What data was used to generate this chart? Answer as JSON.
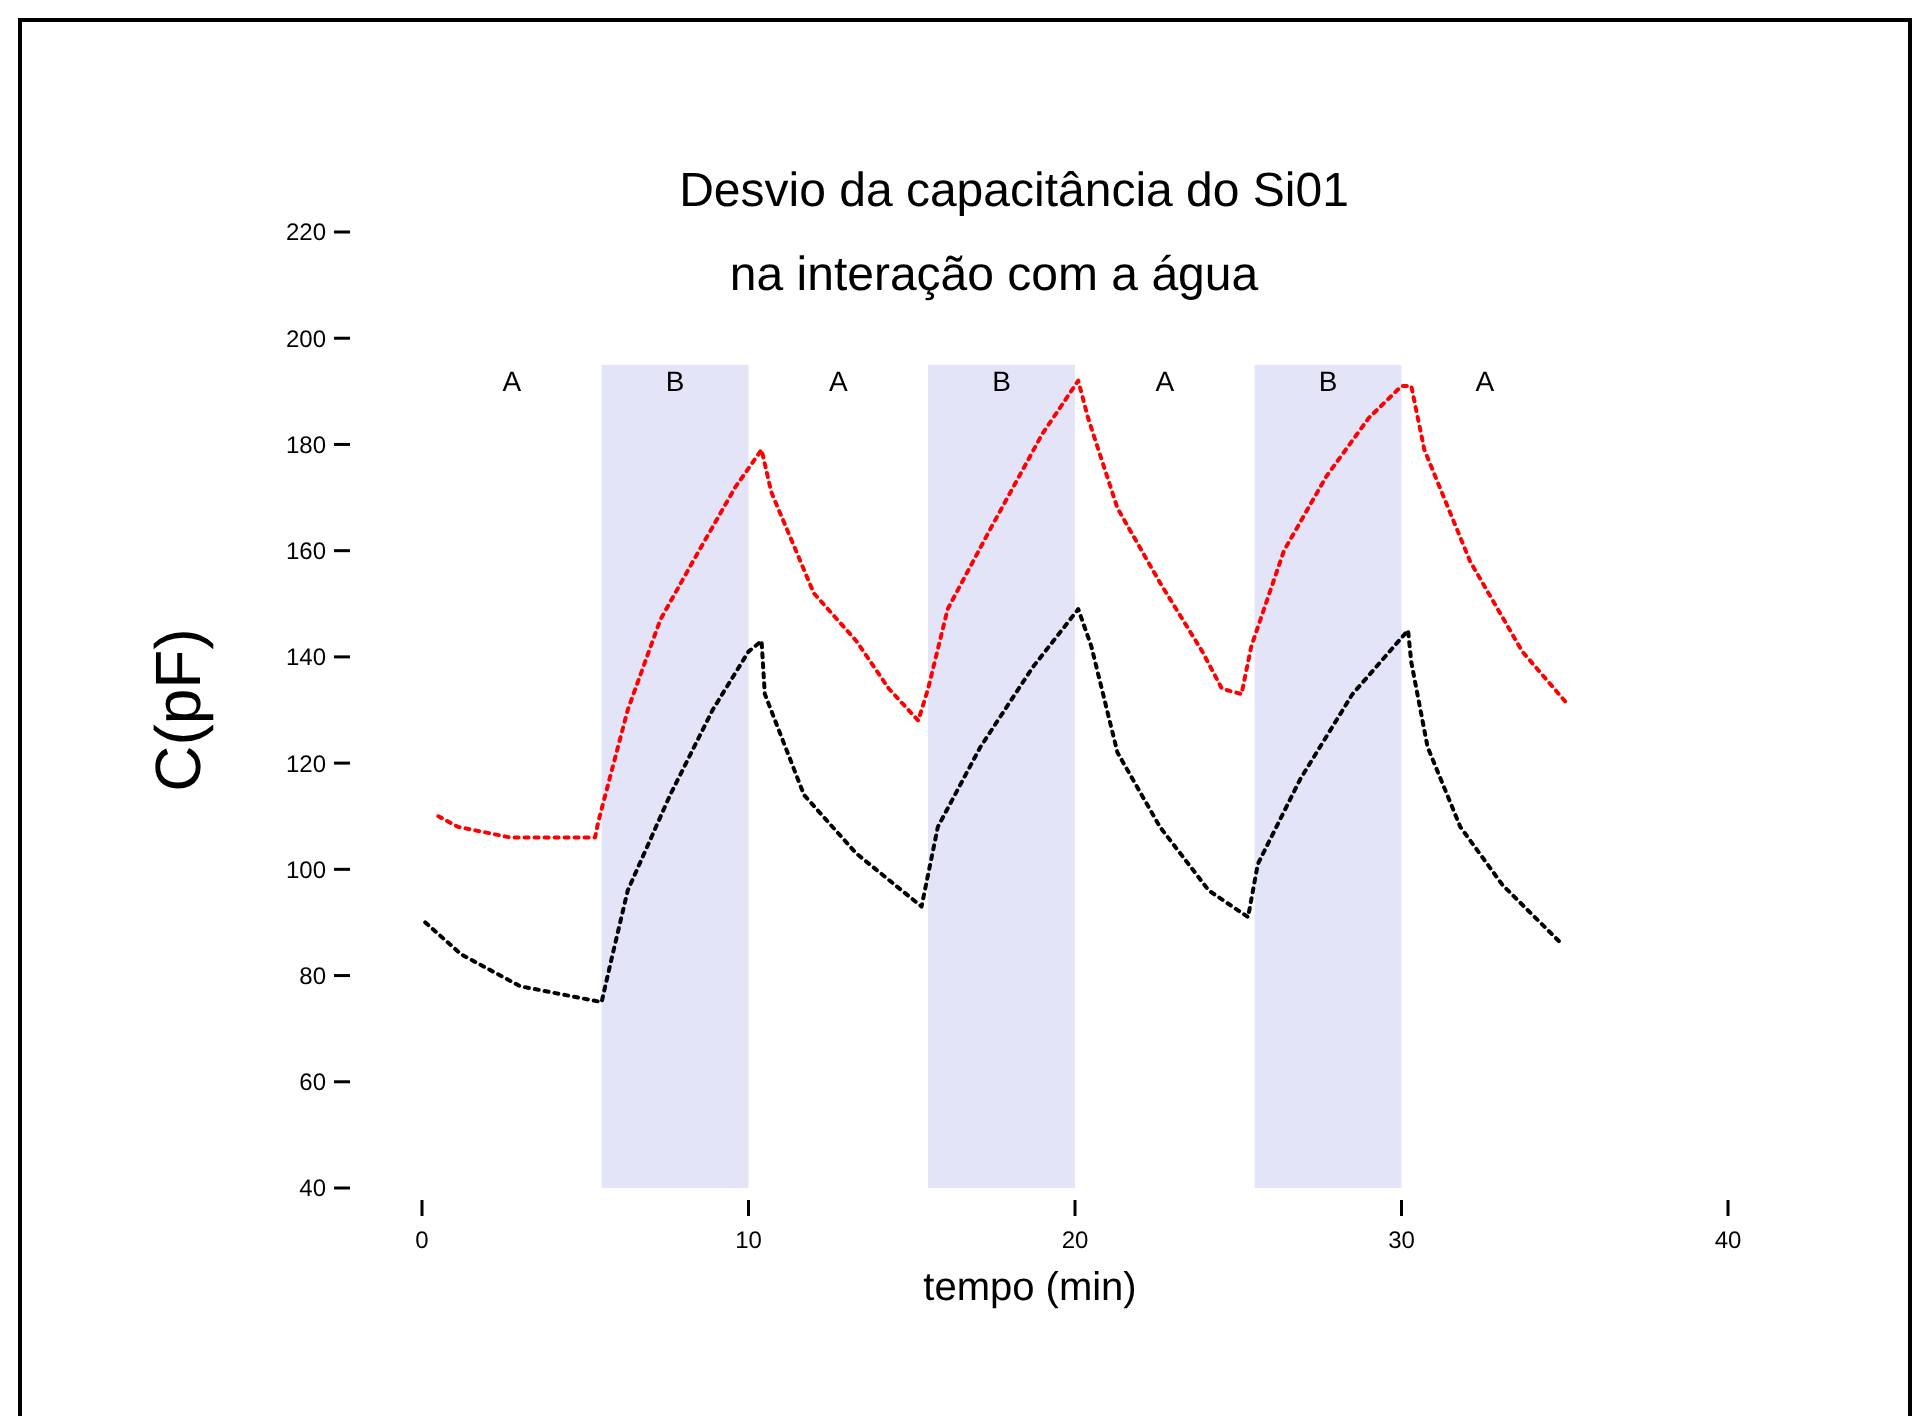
{
  "chart_data": {
    "type": "line",
    "title": "Desvio da capacitância do Si01",
    "subtitle": "na interação com a água",
    "xlabel": "tempo (min)",
    "ylabel": "C(pF)",
    "xlim": [
      0,
      40
    ],
    "xticks": [
      0,
      10,
      20,
      30,
      40
    ],
    "ylim": [
      40,
      220
    ],
    "yticks": [
      40,
      60,
      80,
      100,
      120,
      140,
      160,
      180,
      200,
      220
    ],
    "line_style": "dotted",
    "grid": false,
    "legend": false,
    "series": [
      {
        "color": "#000000",
        "x": [
          0.1,
          1.2,
          3,
          5.5,
          5.8,
          6.3,
          7.6,
          8.9,
          10,
          10.4,
          10.5,
          11.7,
          13.3,
          15.3,
          15.8,
          17.1,
          18.7,
          20.1,
          20.5,
          21.3,
          22.6,
          24.1,
          25.3,
          25.6,
          26.9,
          28.5,
          30.2,
          30.3,
          30.8,
          31.8,
          33.1,
          34.9
        ],
        "values": [
          90,
          84,
          78,
          75,
          83,
          96,
          114,
          130,
          141,
          143,
          133,
          114,
          103,
          93,
          108,
          123,
          138,
          149,
          142,
          122,
          108,
          96,
          91,
          101,
          117,
          133,
          145,
          139,
          123,
          108,
          97,
          86
        ]
      },
      {
        "color": "#ff0000",
        "x": [
          0.5,
          1.1,
          2.7,
          5.3,
          5.4,
          6.3,
          7.3,
          8.3,
          9.6,
          10.4,
          10.7,
          12,
          13.3,
          14.3,
          15.2,
          15.5,
          16.1,
          17.4,
          19,
          20.1,
          20.4,
          21.3,
          22.6,
          23.9,
          24.5,
          25.1,
          25.4,
          26.4,
          27.7,
          29,
          30,
          30.3,
          30.7,
          32.1,
          33.7,
          35.1
        ],
        "values": [
          110,
          108,
          106,
          106,
          109,
          130,
          147,
          158,
          172,
          179,
          171,
          152,
          143,
          134,
          128,
          134,
          149,
          164,
          182,
          192,
          185,
          168,
          154,
          141,
          134,
          133,
          142,
          160,
          174,
          185,
          191,
          191,
          179,
          158,
          141,
          131
        ]
      }
    ],
    "bands": [
      {
        "axis": "x",
        "from": 5.5,
        "to": 10,
        "label": "B",
        "color": "#e4e4f8"
      },
      {
        "axis": "x",
        "from": 15.5,
        "to": 20,
        "label": "B",
        "color": "#e4e4f8"
      },
      {
        "axis": "x",
        "from": 25.5,
        "to": 30,
        "label": "B",
        "color": "#e4e4f8"
      }
    ],
    "annotations": [
      "A",
      "A",
      "A",
      "A"
    ]
  }
}
